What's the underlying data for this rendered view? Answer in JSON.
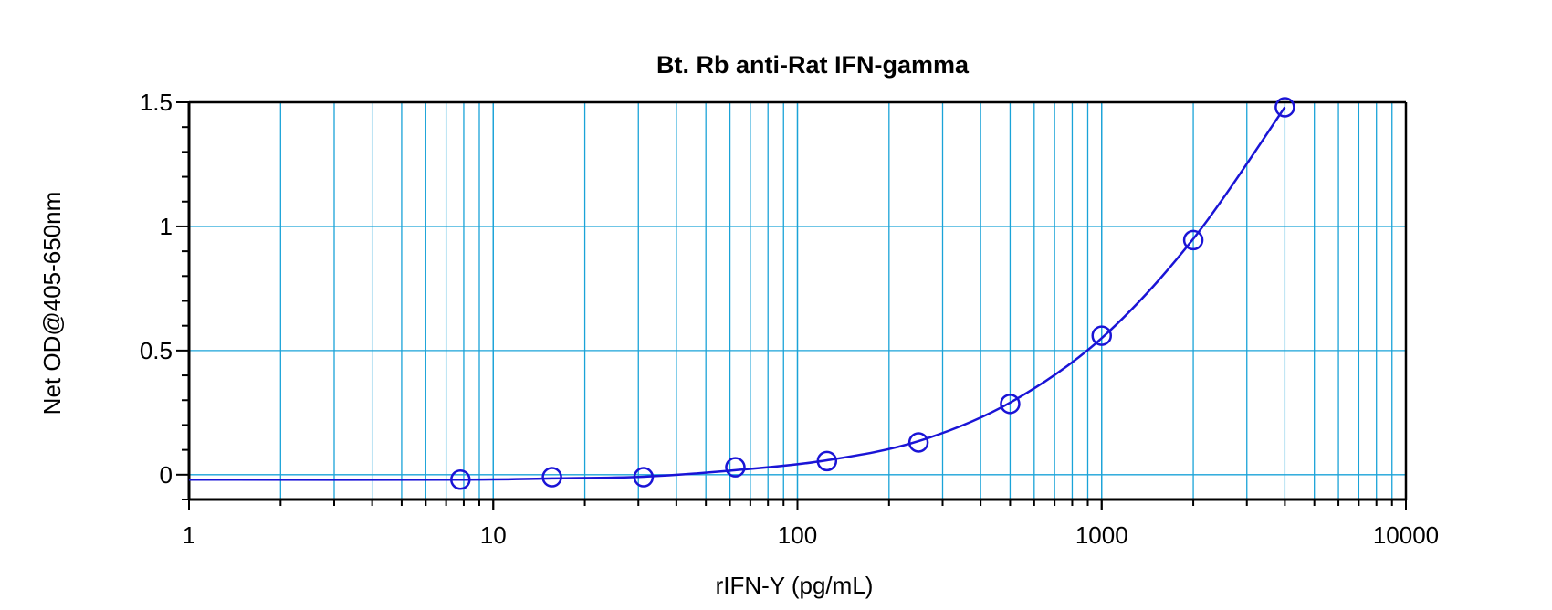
{
  "chart_data": {
    "type": "scatter",
    "title": "Bt. Rb anti-Rat IFN-gamma",
    "xlabel": "rIFN-Y (pg/mL)",
    "ylabel": "Net OD@405-650nm",
    "x_scale": "log",
    "xlim": [
      1,
      10000
    ],
    "ylim": [
      -0.1,
      1.5
    ],
    "x_ticks": [
      1,
      10,
      100,
      1000,
      10000
    ],
    "x_tick_labels": [
      "1",
      "10",
      "100",
      "1000",
      "10000"
    ],
    "y_ticks": [
      0,
      0.5,
      1,
      1.5
    ],
    "y_tick_labels": [
      "0",
      "0.5",
      "1",
      "1.5"
    ],
    "grid": true,
    "series": [
      {
        "points": [
          {
            "x": 7.8,
            "y": -0.02
          },
          {
            "x": 15.6,
            "y": -0.01
          },
          {
            "x": 31.2,
            "y": -0.01
          },
          {
            "x": 62.5,
            "y": 0.03
          },
          {
            "x": 125,
            "y": 0.055
          },
          {
            "x": 250,
            "y": 0.13
          },
          {
            "x": 500,
            "y": 0.285
          },
          {
            "x": 1000,
            "y": 0.56
          },
          {
            "x": 2000,
            "y": 0.945
          },
          {
            "x": 4000,
            "y": 1.48
          }
        ],
        "fit_line": [
          {
            "x": 1,
            "y": -0.02
          },
          {
            "x": 7.8,
            "y": -0.02
          },
          {
            "x": 15.6,
            "y": -0.015
          },
          {
            "x": 31.2,
            "y": -0.008
          },
          {
            "x": 62.5,
            "y": 0.018
          },
          {
            "x": 125,
            "y": 0.058
          },
          {
            "x": 250,
            "y": 0.135
          },
          {
            "x": 500,
            "y": 0.29
          },
          {
            "x": 1000,
            "y": 0.55
          },
          {
            "x": 2000,
            "y": 0.95
          },
          {
            "x": 4000,
            "y": 1.48
          }
        ]
      }
    ],
    "colors": {
      "series": "#1a14d6",
      "grid": "#1aa3d8",
      "axes": "#000000"
    }
  }
}
